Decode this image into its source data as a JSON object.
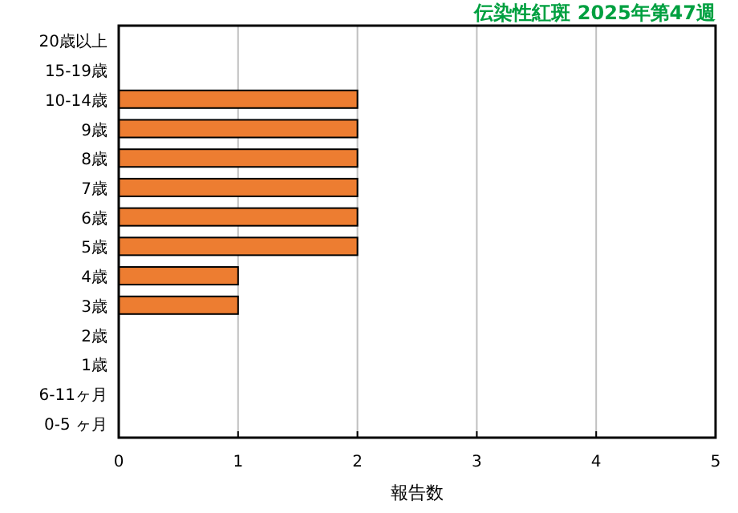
{
  "chart_data": {
    "type": "bar",
    "orientation": "horizontal",
    "title": "伝染性紅斑 2025年第47週",
    "xlabel": "報告数",
    "categories": [
      "20歳以上",
      "15-19歳",
      "10-14歳",
      "9歳",
      "8歳",
      "7歳",
      "6歳",
      "5歳",
      "4歳",
      "3歳",
      "2歳",
      "1歳",
      "6-11ヶ月",
      "0-5 ヶ月"
    ],
    "series": [
      {
        "color": "#ed7d31",
        "values": [
          0,
          0,
          2,
          2,
          2,
          2,
          2,
          2,
          1,
          1,
          0,
          0,
          0,
          0
        ]
      }
    ],
    "xlim": [
      0,
      5
    ],
    "xticks": [
      0,
      1,
      2,
      3,
      4,
      5
    ],
    "grid": "x"
  }
}
